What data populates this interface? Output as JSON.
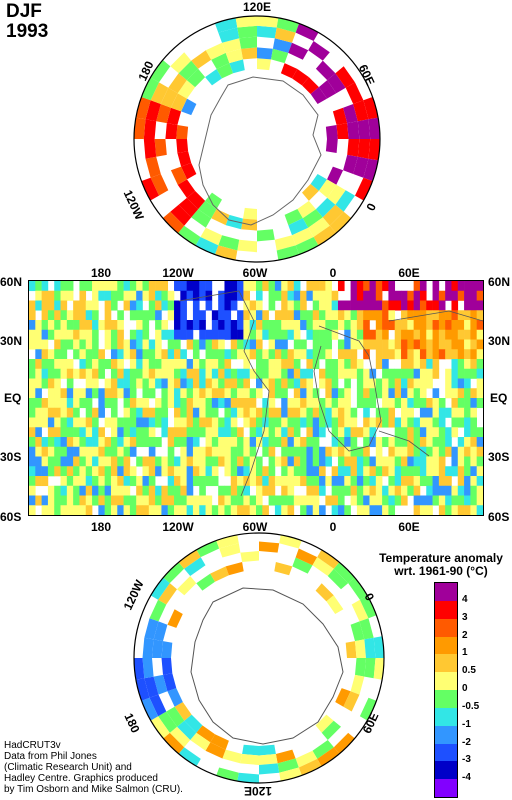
{
  "header": {
    "season": "DJF",
    "year": "1993"
  },
  "north_polar": {
    "labels": {
      "top": "120E",
      "upper_left": "180",
      "upper_right": "60E",
      "lower_left": "120W",
      "lower_right": "0"
    }
  },
  "equirect": {
    "top_lon": [
      "180",
      "120W",
      "60W",
      "0",
      "60E"
    ],
    "bottom_lon": [
      "180",
      "120W",
      "60W",
      "0",
      "60E"
    ],
    "lat_left": [
      "60N",
      "30N",
      "EQ",
      "30S",
      "60S"
    ],
    "lat_right": [
      "60N",
      "30N",
      "EQ",
      "30S",
      "60S"
    ]
  },
  "south_polar": {
    "labels": {
      "upper_left": "120W",
      "upper_right": "0",
      "lower_left": "180",
      "lower_right": "60E",
      "bottom": "120E"
    }
  },
  "legend": {
    "title_line1": "Temperature anomaly",
    "title_line2": "wrt. 1961-90  (°C)",
    "ticks": [
      "4",
      "3",
      "2",
      "1",
      "0.5",
      "0",
      "-0.5",
      "-1",
      "-2",
      "-3",
      "-4"
    ],
    "colors": [
      "#a0009a",
      "#ff0000",
      "#ff5a00",
      "#ff9a00",
      "#ffc832",
      "#ffff73",
      "#64ff64",
      "#32e6e6",
      "#3296ff",
      "#1e50ff",
      "#0000c8",
      "#8200ff"
    ]
  },
  "credit": {
    "line1": "HadCRUT3v",
    "line2": "Data from Phil Jones",
    "line3": "(Climatic Research Unit) and",
    "line4": "Hadley Centre.  Graphics produced",
    "line5": "by Tim Osborn and Mike Salmon (CRU)."
  }
}
